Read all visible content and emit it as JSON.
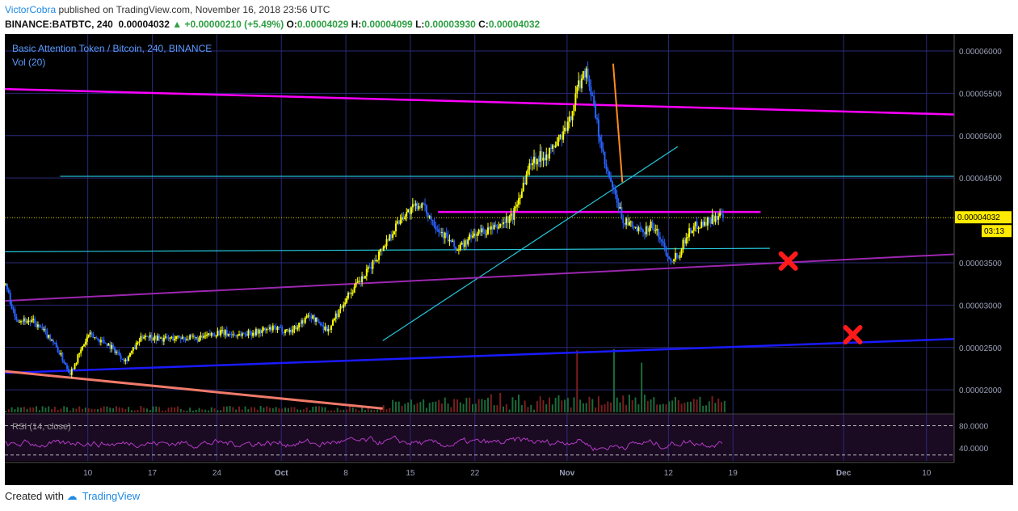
{
  "header": {
    "author": "VictorCobra",
    "published_text": "published on TradingView.com, November 16, 2018 23:56 UTC",
    "symbol": "BINANCE:BATBTC, 240",
    "price": "0.00004032",
    "change": "▲ +0.00000210 (+5.49%)",
    "o_label": "O:",
    "o": "0.00004029",
    "h_label": "H:",
    "h": "0.00004099",
    "l_label": "L:",
    "l": "0.00003930",
    "c_label": "C:",
    "c": "0.00004032"
  },
  "chart": {
    "legend_title": "Basic Attention Token / Bitcoin, 240, BINANCE",
    "legend_vol": "Vol (20)",
    "last_price_label": "0.00004032",
    "countdown": "03:13",
    "rsi_label": "RSI (14, close)",
    "rsi_ticks": [
      "80.0000",
      "40.0000"
    ],
    "colors": {
      "background": "#000000",
      "up": "#ffff00",
      "down": "#2962ff",
      "magenta": "#ff00ff",
      "cyan": "#26c6da",
      "purple": "#9c27b0",
      "blue": "#1a1aff",
      "salmon": "#f07a6a",
      "grid": "#2a2a7a"
    }
  },
  "footer": {
    "created_with": "Created with",
    "brand": "TradingView"
  },
  "chart_data": {
    "type": "line",
    "title": "Basic Attention Token / Bitcoin, 240, BINANCE",
    "y_ticks": [
      "0.00006000",
      "0.00005500",
      "0.00005000",
      "0.00004500",
      "0.00003500",
      "0.00003000",
      "0.00002500",
      "0.00002000"
    ],
    "y_tick_values": [
      6e-05,
      5.5e-05,
      5e-05,
      4.5e-05,
      3.5e-05,
      3e-05,
      2.5e-05,
      2e-05
    ],
    "ylim": [
      1.83e-05,
      6.2e-05
    ],
    "x_ticks": [
      "10",
      "17",
      "24",
      "Oct",
      "8",
      "15",
      "22",
      "Nov",
      "12",
      "19",
      "Dec",
      "10"
    ],
    "x_tick_days": [
      9,
      16,
      23,
      30,
      37,
      44,
      51,
      61,
      72,
      79,
      91,
      100
    ],
    "x_axis_note": "days from 2018-09-01",
    "series": [
      {
        "x": [
          0,
          1,
          3,
          5,
          7,
          9,
          11,
          13,
          15,
          17,
          19,
          21,
          23,
          25,
          27,
          29,
          31,
          33,
          35,
          37,
          39,
          41,
          43,
          45,
          47,
          49,
          51,
          53,
          55,
          57,
          59,
          61,
          62,
          63,
          65,
          67,
          69,
          70,
          71,
          72,
          73,
          74,
          75,
          76,
          77,
          78
        ],
        "values": [
          3.25e-05,
          2.85e-05,
          2.8e-05,
          2.6e-05,
          2.2e-05,
          2.65e-05,
          2.55e-05,
          2.35e-05,
          2.65e-05,
          2.6e-05,
          2.62e-05,
          2.6e-05,
          2.68e-05,
          2.65e-05,
          2.68e-05,
          2.72e-05,
          2.7e-05,
          2.88e-05,
          2.7e-05,
          3.1e-05,
          3.35e-05,
          3.7e-05,
          4.05e-05,
          4.2e-05,
          3.9e-05,
          3.65e-05,
          3.85e-05,
          3.9e-05,
          4.05e-05,
          4.7e-05,
          4.8e-05,
          5.1e-05,
          5.55e-05,
          5.8e-05,
          4.65e-05,
          4e-05,
          3.85e-05,
          3.95e-05,
          3.8e-05,
          3.55e-05,
          3.6e-05,
          3.85e-05,
          3.95e-05,
          3.98e-05,
          4.05e-05,
          4.032e-05
        ]
      }
    ],
    "volume_spikes": [
      {
        "x": 62
      },
      {
        "x": 66
      },
      {
        "x": 69
      }
    ],
    "trendlines": [
      {
        "color": "magenta",
        "from": [
          0,
          5.55e-05
        ],
        "to": [
          103,
          5.25e-05
        ]
      },
      {
        "color": "magenta",
        "from": [
          47,
          4.1e-05
        ],
        "to": [
          82,
          4.1e-05
        ]
      },
      {
        "color": "cyan",
        "from": [
          6,
          4.52e-05
        ],
        "to": [
          103,
          4.52e-05
        ]
      },
      {
        "color": "cyan",
        "from": [
          0,
          3.63e-05
        ],
        "to": [
          83,
          3.67e-05
        ]
      },
      {
        "color": "cyan",
        "from": [
          41,
          2.58e-05
        ],
        "to": [
          73,
          4.87e-05
        ]
      },
      {
        "color": "purple",
        "from": [
          0,
          3.05e-05
        ],
        "to": [
          103,
          3.6e-05
        ]
      },
      {
        "color": "blue",
        "from": [
          0,
          2.2e-05
        ],
        "to": [
          103,
          2.6e-05
        ]
      },
      {
        "color": "salmon",
        "from": [
          0,
          2.22e-05
        ],
        "to": [
          41,
          1.78e-05
        ]
      },
      {
        "color": "orange",
        "from": [
          66,
          5.85e-05
        ],
        "to": [
          67,
          4.45e-05
        ]
      }
    ],
    "markers": [
      {
        "x": 85,
        "y": 3.52e-05
      },
      {
        "x": 92,
        "y": 2.65e-05
      }
    ],
    "last_price": 4.032e-05,
    "rsi_range": [
      20,
      100
    ]
  }
}
